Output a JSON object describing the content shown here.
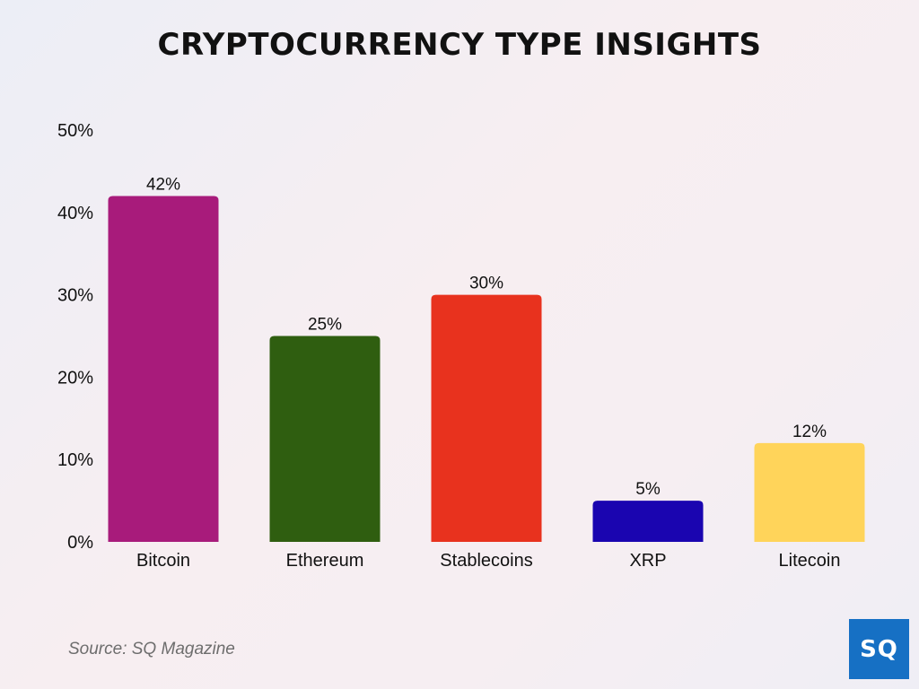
{
  "chart_data": {
    "type": "bar",
    "title": "CRYPTOCURRENCY TYPE INSIGHTS",
    "categories": [
      "Bitcoin",
      "Ethereum",
      "Stablecoins",
      "XRP",
      "Litecoin"
    ],
    "values": [
      42,
      25,
      30,
      5,
      12
    ],
    "data_labels": [
      "42%",
      "25%",
      "30%",
      "5%",
      "12%"
    ],
    "colors": [
      "#a81b7b",
      "#2f5e10",
      "#e8321e",
      "#1a05b0",
      "#ffd45a"
    ],
    "y_ticks": [
      {
        "value": 0,
        "label": "0%"
      },
      {
        "value": 10,
        "label": "10%"
      },
      {
        "value": 20,
        "label": "20%"
      },
      {
        "value": 30,
        "label": "30%"
      },
      {
        "value": 40,
        "label": "40%"
      },
      {
        "value": 50,
        "label": "50%"
      }
    ],
    "ylim": [
      0,
      50
    ],
    "xlabel": "",
    "ylabel": "",
    "grid": false,
    "legend": "none"
  },
  "footer": {
    "source": "Source: SQ Magazine",
    "logo_text": "SQ"
  },
  "colors": {
    "logo_background": "#1670c4"
  }
}
